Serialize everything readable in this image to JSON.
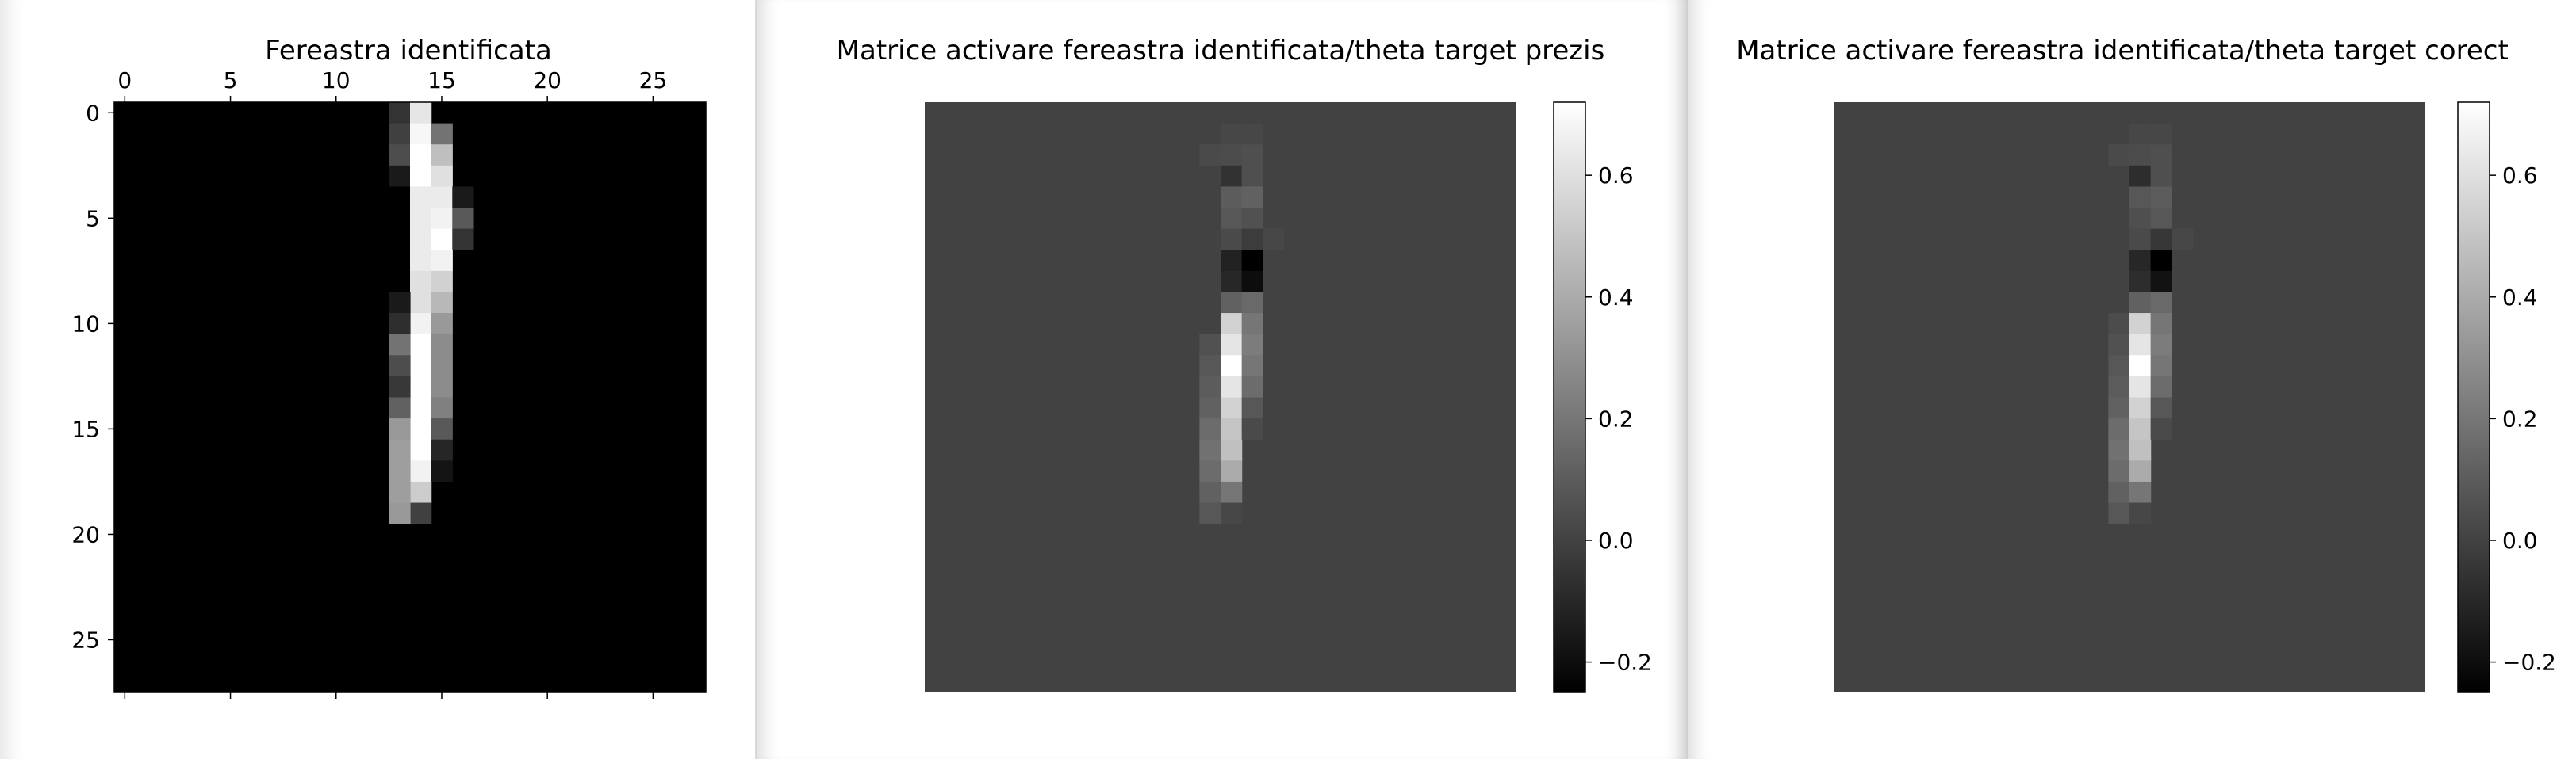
{
  "chart_data": [
    {
      "type": "heatmap",
      "title": "Fereastra identificata",
      "colormap": "gray",
      "shape": [
        28,
        28
      ],
      "x_ticks": [
        "0",
        "5",
        "10",
        "15",
        "20",
        "25"
      ],
      "y_ticks": [
        "0",
        "5",
        "10",
        "15",
        "20",
        "25"
      ],
      "x_ticks_position": "top",
      "value_range": [
        0,
        1
      ],
      "cells": [
        [
          0,
          13,
          0.2
        ],
        [
          1,
          13,
          0.25
        ],
        [
          2,
          13,
          0.3
        ],
        [
          3,
          13,
          0.1
        ],
        [
          4,
          13,
          0.0
        ],
        [
          0,
          14,
          0.9
        ],
        [
          1,
          14,
          0.97
        ],
        [
          2,
          14,
          1.0
        ],
        [
          3,
          14,
          1.0
        ],
        [
          4,
          14,
          0.92
        ],
        [
          5,
          14,
          0.92
        ],
        [
          6,
          14,
          0.92
        ],
        [
          7,
          14,
          0.92
        ],
        [
          8,
          14,
          0.88
        ],
        [
          9,
          14,
          0.88
        ],
        [
          10,
          14,
          0.95
        ],
        [
          11,
          14,
          1.0
        ],
        [
          12,
          14,
          1.0
        ],
        [
          13,
          14,
          1.0
        ],
        [
          14,
          14,
          1.0
        ],
        [
          15,
          14,
          1.0
        ],
        [
          16,
          14,
          1.0
        ],
        [
          17,
          14,
          0.95
        ],
        [
          18,
          14,
          0.8
        ],
        [
          19,
          14,
          0.25
        ],
        [
          1,
          15,
          0.45
        ],
        [
          2,
          15,
          0.75
        ],
        [
          3,
          15,
          0.88
        ],
        [
          4,
          15,
          0.92
        ],
        [
          5,
          15,
          0.95
        ],
        [
          6,
          15,
          1.0
        ],
        [
          7,
          15,
          0.95
        ],
        [
          8,
          15,
          0.82
        ],
        [
          9,
          15,
          0.72
        ],
        [
          10,
          15,
          0.6
        ],
        [
          11,
          15,
          0.55
        ],
        [
          12,
          15,
          0.55
        ],
        [
          13,
          15,
          0.55
        ],
        [
          14,
          15,
          0.5
        ],
        [
          15,
          15,
          0.35
        ],
        [
          16,
          15,
          0.15
        ],
        [
          17,
          15,
          0.08
        ],
        [
          4,
          16,
          0.1
        ],
        [
          5,
          16,
          0.35
        ],
        [
          6,
          16,
          0.2
        ],
        [
          9,
          13,
          0.1
        ],
        [
          10,
          13,
          0.18
        ],
        [
          11,
          13,
          0.45
        ],
        [
          12,
          13,
          0.3
        ],
        [
          13,
          13,
          0.22
        ],
        [
          14,
          13,
          0.38
        ],
        [
          15,
          13,
          0.6
        ],
        [
          16,
          13,
          0.62
        ],
        [
          17,
          13,
          0.62
        ],
        [
          18,
          13,
          0.62
        ],
        [
          19,
          13,
          0.6
        ]
      ]
    },
    {
      "type": "heatmap",
      "title": "Matrice activare fereastra identificata/theta target prezis",
      "colormap": "gray",
      "shape": [
        28,
        28
      ],
      "value_range": [
        -0.25,
        0.72
      ],
      "background_value": 0.0,
      "colorbar_ticks": [
        "0.6",
        "0.4",
        "0.2",
        "0.0",
        "−0.2"
      ],
      "colorbar_values": [
        0.6,
        0.4,
        0.2,
        0.0,
        -0.2
      ],
      "cells": [
        [
          1,
          14,
          0.02
        ],
        [
          1,
          15,
          0.02
        ],
        [
          2,
          13,
          0.03
        ],
        [
          2,
          14,
          0.04
        ],
        [
          2,
          15,
          0.05
        ],
        [
          3,
          14,
          -0.06
        ],
        [
          3,
          15,
          0.05
        ],
        [
          4,
          14,
          0.1
        ],
        [
          4,
          15,
          0.12
        ],
        [
          5,
          14,
          0.08
        ],
        [
          5,
          15,
          0.06
        ],
        [
          6,
          14,
          0.03
        ],
        [
          6,
          15,
          -0.02
        ],
        [
          6,
          16,
          0.02
        ],
        [
          7,
          14,
          -0.12
        ],
        [
          7,
          15,
          -0.25
        ],
        [
          8,
          14,
          -0.1
        ],
        [
          8,
          15,
          -0.2
        ],
        [
          9,
          14,
          0.12
        ],
        [
          9,
          15,
          0.15
        ],
        [
          10,
          14,
          0.55
        ],
        [
          10,
          15,
          0.2
        ],
        [
          11,
          13,
          0.06
        ],
        [
          11,
          14,
          0.62
        ],
        [
          11,
          15,
          0.22
        ],
        [
          12,
          13,
          0.08
        ],
        [
          12,
          14,
          0.72
        ],
        [
          12,
          15,
          0.2
        ],
        [
          13,
          13,
          0.1
        ],
        [
          13,
          14,
          0.62
        ],
        [
          13,
          15,
          0.16
        ],
        [
          14,
          13,
          0.12
        ],
        [
          14,
          14,
          0.55
        ],
        [
          14,
          15,
          0.08
        ],
        [
          15,
          13,
          0.16
        ],
        [
          15,
          14,
          0.5
        ],
        [
          15,
          15,
          0.03
        ],
        [
          16,
          13,
          0.18
        ],
        [
          16,
          14,
          0.48
        ],
        [
          17,
          13,
          0.16
        ],
        [
          17,
          14,
          0.4
        ],
        [
          18,
          13,
          0.12
        ],
        [
          18,
          14,
          0.2
        ],
        [
          19,
          13,
          0.08
        ],
        [
          19,
          14,
          0.02
        ]
      ]
    },
    {
      "type": "heatmap",
      "title": "Matrice activare fereastra identificata/theta target corect",
      "colormap": "gray",
      "shape": [
        28,
        28
      ],
      "value_range": [
        -0.25,
        0.72
      ],
      "background_value": 0.0,
      "colorbar_ticks": [
        "0.6",
        "0.4",
        "0.2",
        "0.0",
        "−0.2"
      ],
      "colorbar_values": [
        0.6,
        0.4,
        0.2,
        0.0,
        -0.2
      ],
      "cells": [
        [
          1,
          14,
          0.02
        ],
        [
          1,
          15,
          0.02
        ],
        [
          2,
          13,
          0.03
        ],
        [
          2,
          14,
          0.04
        ],
        [
          2,
          15,
          0.05
        ],
        [
          3,
          14,
          -0.08
        ],
        [
          3,
          15,
          0.05
        ],
        [
          4,
          14,
          0.08
        ],
        [
          4,
          15,
          0.1
        ],
        [
          5,
          14,
          0.05
        ],
        [
          5,
          15,
          0.08
        ],
        [
          6,
          14,
          0.03
        ],
        [
          6,
          15,
          -0.04
        ],
        [
          6,
          16,
          0.02
        ],
        [
          7,
          14,
          -0.1
        ],
        [
          7,
          15,
          -0.25
        ],
        [
          8,
          14,
          -0.08
        ],
        [
          8,
          15,
          -0.18
        ],
        [
          9,
          14,
          0.12
        ],
        [
          9,
          15,
          0.15
        ],
        [
          10,
          13,
          0.04
        ],
        [
          10,
          14,
          0.55
        ],
        [
          10,
          15,
          0.2
        ],
        [
          11,
          13,
          0.06
        ],
        [
          11,
          14,
          0.62
        ],
        [
          11,
          15,
          0.22
        ],
        [
          12,
          13,
          0.08
        ],
        [
          12,
          14,
          0.72
        ],
        [
          12,
          15,
          0.2
        ],
        [
          13,
          13,
          0.1
        ],
        [
          13,
          14,
          0.62
        ],
        [
          13,
          15,
          0.16
        ],
        [
          14,
          13,
          0.12
        ],
        [
          14,
          14,
          0.55
        ],
        [
          14,
          15,
          0.08
        ],
        [
          15,
          13,
          0.16
        ],
        [
          15,
          14,
          0.5
        ],
        [
          15,
          15,
          0.03
        ],
        [
          16,
          13,
          0.18
        ],
        [
          16,
          14,
          0.48
        ],
        [
          17,
          13,
          0.16
        ],
        [
          17,
          14,
          0.4
        ],
        [
          18,
          13,
          0.12
        ],
        [
          18,
          14,
          0.2
        ],
        [
          19,
          13,
          0.08
        ],
        [
          19,
          14,
          0.02
        ]
      ]
    }
  ]
}
